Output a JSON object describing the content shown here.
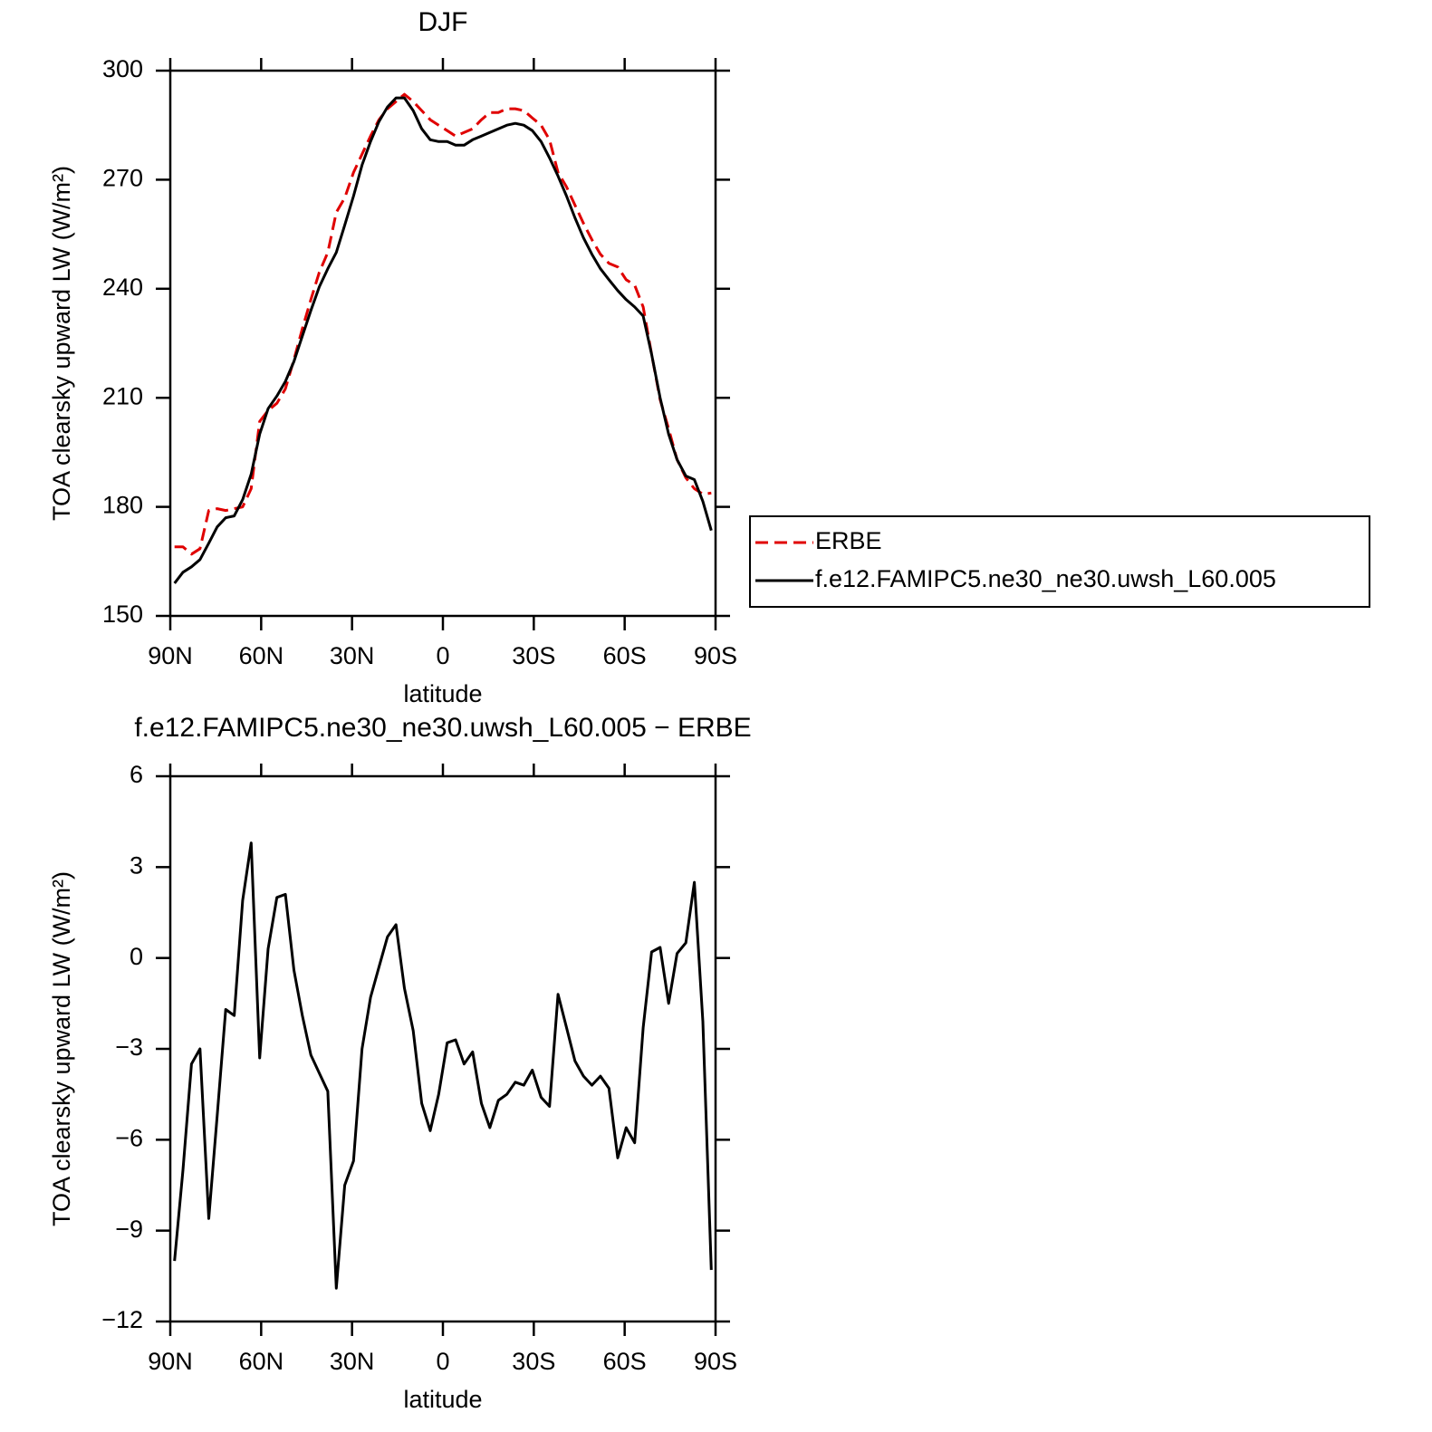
{
  "chart_data": [
    {
      "type": "line",
      "title": "DJF",
      "x_label": "latitude",
      "y_label": "TOA clearsky upward LW (W/m²)",
      "x": [
        88.6,
        85.8,
        83.0,
        80.2,
        77.3,
        74.5,
        71.7,
        68.9,
        66.1,
        63.3,
        60.5,
        57.7,
        54.8,
        52.0,
        49.2,
        46.4,
        43.6,
        40.8,
        38.0,
        35.2,
        32.4,
        29.5,
        26.7,
        23.9,
        21.1,
        18.3,
        15.5,
        12.7,
        9.8,
        7.0,
        4.2,
        1.4,
        -1.4,
        -4.2,
        -7.0,
        -9.8,
        -12.7,
        -15.5,
        -18.3,
        -21.1,
        -23.9,
        -26.7,
        -29.5,
        -32.4,
        -35.2,
        -38.0,
        -40.8,
        -43.6,
        -46.4,
        -49.2,
        -52.0,
        -54.8,
        -57.7,
        -60.5,
        -63.3,
        -66.1,
        -68.9,
        -71.7,
        -74.5,
        -77.3,
        -80.2,
        -83.0,
        -85.8,
        -88.6
      ],
      "series": [
        {
          "name": "ERBE",
          "color": "#e00000",
          "dashed": true,
          "values": [
            169,
            169,
            167,
            168.5,
            179,
            179.5,
            179,
            179.5,
            180,
            185,
            203.5,
            206.5,
            208.5,
            212.5,
            220.5,
            229,
            237,
            244.5,
            250,
            261,
            265,
            272,
            277,
            282,
            286.5,
            289.5,
            291.5,
            293.5,
            291.5,
            289,
            286.5,
            285,
            283.5,
            282,
            283,
            284,
            286.5,
            288.5,
            288.5,
            289.5,
            289.5,
            289,
            287,
            285,
            281,
            272,
            268,
            263,
            258,
            253.5,
            249.5,
            247,
            246,
            242.5,
            241,
            235,
            222,
            209.5,
            201.5,
            193,
            188,
            185,
            183.5,
            183.8
          ]
        },
        {
          "name": "f.e12.FAMIPC5.ne30_ne30.uwsh_L60.005",
          "color": "#000000",
          "dashed": false,
          "values": [
            159,
            162,
            163.5,
            165.5,
            170,
            174.5,
            177,
            177.5,
            182,
            189,
            200,
            207,
            210.5,
            214.5,
            220,
            227,
            234,
            240.5,
            245.5,
            250,
            257.5,
            265.5,
            274,
            280.5,
            286,
            290,
            292.5,
            292.5,
            289,
            284,
            281,
            280.5,
            280.5,
            279.5,
            279.5,
            281,
            282,
            283,
            284,
            285,
            285.5,
            285,
            283.5,
            280.5,
            276,
            271,
            265.5,
            259.5,
            254,
            249.5,
            245.5,
            242.5,
            239.5,
            237,
            235,
            232.5,
            222,
            210,
            200,
            193,
            188.5,
            187.5,
            181.5,
            173.5
          ]
        }
      ],
      "xlim": [
        90,
        -90
      ],
      "xticks": [
        {
          "value": 90,
          "label": "90N"
        },
        {
          "value": 60,
          "label": "60N"
        },
        {
          "value": 30,
          "label": "30N"
        },
        0,
        {
          "value": -30,
          "label": "30S"
        },
        {
          "value": -60,
          "label": "60S"
        },
        {
          "value": -90,
          "label": "90S"
        }
      ],
      "ylim": [
        150,
        300
      ],
      "yticks": [
        150,
        180,
        210,
        240,
        270,
        300
      ],
      "legend": "right"
    },
    {
      "type": "line",
      "title": "f.e12.FAMIPC5.ne30_ne30.uwsh_L60.005 − ERBE",
      "x_label": "latitude",
      "y_label": "TOA clearsky upward LW (W/m²)",
      "x": [
        88.6,
        85.8,
        83.0,
        80.2,
        77.3,
        74.5,
        71.7,
        68.9,
        66.1,
        63.3,
        60.5,
        57.7,
        54.8,
        52.0,
        49.2,
        46.4,
        43.6,
        40.8,
        38.0,
        35.2,
        32.4,
        29.5,
        26.7,
        23.9,
        21.1,
        18.3,
        15.5,
        12.7,
        9.8,
        7.0,
        4.2,
        1.4,
        -1.4,
        -4.2,
        -7.0,
        -9.8,
        -12.7,
        -15.5,
        -18.3,
        -21.1,
        -23.9,
        -26.7,
        -29.5,
        -32.4,
        -35.2,
        -38.0,
        -40.8,
        -43.6,
        -46.4,
        -49.2,
        -52.0,
        -54.8,
        -57.7,
        -60.5,
        -63.3,
        -66.1,
        -68.9,
        -71.7,
        -74.5,
        -77.3,
        -80.2,
        -83.0,
        -85.8,
        -88.6
      ],
      "series": [
        {
          "color": "#000000",
          "dashed": false,
          "values": [
            -10,
            -7,
            -3.5,
            -3.0,
            -8.6,
            -5.2,
            -1.7,
            -1.9,
            1.9,
            3.8,
            -3.3,
            0.3,
            2.0,
            2.1,
            -0.4,
            -1.9,
            -3.2,
            -3.8,
            -4.4,
            -10.9,
            -7.5,
            -6.7,
            -3.0,
            -1.3,
            -0.3,
            0.7,
            1.1,
            -1.0,
            -2.4,
            -4.8,
            -5.7,
            -4.5,
            -2.8,
            -2.7,
            -3.5,
            -3.1,
            -4.8,
            -5.6,
            -4.7,
            -4.5,
            -4.1,
            -4.2,
            -3.7,
            -4.6,
            -4.9,
            -1.2,
            -2.3,
            -3.4,
            -3.9,
            -4.2,
            -3.9,
            -4.3,
            -6.6,
            -5.6,
            -6.1,
            -2.3,
            0.2,
            0.35,
            -1.5,
            0.15,
            0.5,
            2.5,
            -2.1,
            -10.3
          ]
        }
      ],
      "xlim": [
        90,
        -90
      ],
      "xticks": [
        {
          "value": 90,
          "label": "90N"
        },
        {
          "value": 60,
          "label": "60N"
        },
        {
          "value": 30,
          "label": "30N"
        },
        0,
        {
          "value": -30,
          "label": "30S"
        },
        {
          "value": -60,
          "label": "60S"
        },
        {
          "value": -90,
          "label": "90S"
        }
      ],
      "ylim": [
        -12,
        6
      ],
      "yticks": [
        {
          "value": -12,
          "label": "−12"
        },
        {
          "value": -9,
          "label": "−9"
        },
        {
          "value": -6,
          "label": "−6"
        },
        {
          "value": -3,
          "label": "−3"
        },
        0,
        3,
        6
      ]
    }
  ]
}
